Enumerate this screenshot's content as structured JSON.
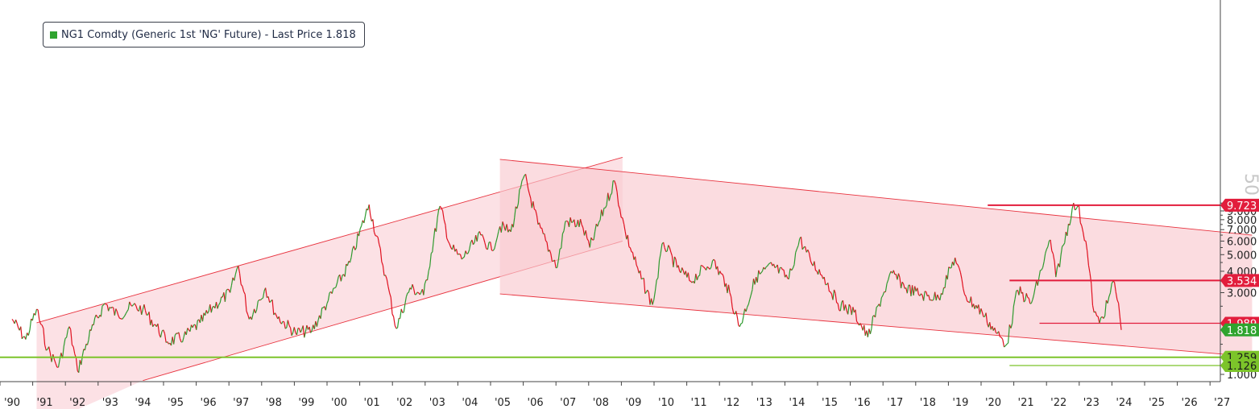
{
  "colors": {
    "up": "#2e9a2e",
    "down": "#e0101f",
    "channel_fill": "#f9c9cf",
    "channel_line": "#e8333f",
    "level_red": "#e21d3c",
    "level_green": "#7cc42a",
    "axis": "#444444"
  },
  "legend": {
    "swatch_color": "#2fa42f",
    "text": "NG1 Comdty (Generic 1st 'NG' Future) - Last Price 1.818"
  },
  "watermark": "50",
  "chart_data": {
    "type": "line",
    "y_scale": "log",
    "ylim": [
      0.92,
      18.5
    ],
    "xlim": [
      "1990-01",
      "2027-12"
    ],
    "x_tick_labels": [
      "'90",
      "'91",
      "'92",
      "'93",
      "'94",
      "'95",
      "'96",
      "'97",
      "'98",
      "'99",
      "'00",
      "'01",
      "'02",
      "'03",
      "'04",
      "'05",
      "'06",
      "'07",
      "'08",
      "'09",
      "'10",
      "'11",
      "'12",
      "'13",
      "'14",
      "'15",
      "'16",
      "'17",
      "'18",
      "'19",
      "'20",
      "'21",
      "'22",
      "'23",
      "'24",
      "'25",
      "'26",
      "'27"
    ],
    "y_tick_labels": [
      "9.000",
      "8.000",
      "7.000",
      "6.000",
      "5.000",
      "4.000",
      "3.000",
      "1.000"
    ],
    "y_tick_values": [
      9,
      8,
      7,
      6,
      5,
      4,
      3,
      1
    ],
    "series": [
      {
        "points": [
          [
            "1990-01",
            2.1
          ],
          [
            "1990-06",
            1.6
          ],
          [
            "1990-10",
            2.4
          ],
          [
            "1991-02",
            1.4
          ],
          [
            "1991-06",
            1.1
          ],
          [
            "1991-10",
            1.9
          ],
          [
            "1992-01",
            1.05
          ],
          [
            "1992-06",
            1.8
          ],
          [
            "1992-11",
            2.6
          ],
          [
            "1993-04",
            2.2
          ],
          [
            "1993-09",
            2.5
          ],
          [
            "1994-01",
            2.4
          ],
          [
            "1994-06",
            1.9
          ],
          [
            "1994-10",
            1.55
          ],
          [
            "1995-04",
            1.65
          ],
          [
            "1995-10",
            2.0
          ],
          [
            "1996-03",
            2.5
          ],
          [
            "1996-09",
            3.0
          ],
          [
            "1996-12",
            4.3
          ],
          [
            "1997-04",
            2.1
          ],
          [
            "1997-10",
            3.2
          ],
          [
            "1998-02",
            2.2
          ],
          [
            "1998-09",
            1.75
          ],
          [
            "1999-03",
            1.8
          ],
          [
            "1999-09",
            2.7
          ],
          [
            "2000-05",
            4.5
          ],
          [
            "2000-12",
            9.8
          ],
          [
            "2001-06",
            3.8
          ],
          [
            "2001-10",
            1.85
          ],
          [
            "2002-03",
            3.2
          ],
          [
            "2002-08",
            2.9
          ],
          [
            "2003-02",
            9.6
          ],
          [
            "2003-06",
            5.5
          ],
          [
            "2003-10",
            4.7
          ],
          [
            "2004-05",
            6.5
          ],
          [
            "2004-09",
            5.3
          ],
          [
            "2004-12",
            7.3
          ],
          [
            "2005-04",
            6.8
          ],
          [
            "2005-09",
            14.5
          ],
          [
            "2006-02",
            7.5
          ],
          [
            "2006-09",
            4.2
          ],
          [
            "2006-12",
            7.8
          ],
          [
            "2007-06",
            7.5
          ],
          [
            "2007-09",
            5.5
          ],
          [
            "2008-06",
            13.5
          ],
          [
            "2008-10",
            6.8
          ],
          [
            "2009-03",
            3.9
          ],
          [
            "2009-08",
            2.55
          ],
          [
            "2009-12",
            5.9
          ],
          [
            "2010-05",
            4.2
          ],
          [
            "2010-10",
            3.5
          ],
          [
            "2011-06",
            4.6
          ],
          [
            "2011-11",
            3.4
          ],
          [
            "2012-04",
            1.9
          ],
          [
            "2012-10",
            3.7
          ],
          [
            "2013-04",
            4.3
          ],
          [
            "2013-10",
            3.6
          ],
          [
            "2014-02",
            6.2
          ],
          [
            "2014-06",
            4.6
          ],
          [
            "2014-11",
            3.7
          ],
          [
            "2015-04",
            2.6
          ],
          [
            "2015-10",
            2.3
          ],
          [
            "2016-03",
            1.65
          ],
          [
            "2016-08",
            2.8
          ],
          [
            "2016-12",
            3.9
          ],
          [
            "2017-05",
            3.2
          ],
          [
            "2017-11",
            2.9
          ],
          [
            "2018-05",
            2.8
          ],
          [
            "2018-11",
            4.8
          ],
          [
            "2019-03",
            2.85
          ],
          [
            "2019-09",
            2.3
          ],
          [
            "2020-02",
            1.75
          ],
          [
            "2020-06",
            1.5
          ],
          [
            "2020-10",
            3.1
          ],
          [
            "2021-03",
            2.6
          ],
          [
            "2021-10",
            6.1
          ],
          [
            "2021-12",
            3.7
          ],
          [
            "2022-06",
            9.3
          ],
          [
            "2022-08",
            9.6
          ],
          [
            "2022-11",
            6.0
          ],
          [
            "2023-02",
            2.3
          ],
          [
            "2023-04",
            1.99
          ],
          [
            "2023-07",
            2.6
          ],
          [
            "2023-09",
            3.5
          ],
          [
            "2023-11",
            2.6
          ],
          [
            "2023-12",
            1.818
          ]
        ]
      }
    ],
    "channels": [
      {
        "upper": [
          [
            "1990-10",
            2.0
          ],
          [
            "2008-09",
            18.5
          ]
        ],
        "lower": [
          [
            "1994-01",
            0.92
          ],
          [
            "2008-09",
            6.0
          ]
        ]
      },
      {
        "upper": [
          [
            "2004-12",
            18.0
          ],
          [
            "2027-12",
            6.5
          ]
        ],
        "lower": [
          [
            "2004-12",
            2.95
          ],
          [
            "2027-12",
            1.27
          ]
        ]
      }
    ],
    "levels": [
      {
        "value": 9.723,
        "label": "9.723",
        "color": "red",
        "from": "2019-11"
      },
      {
        "value": 3.534,
        "label": "3.534",
        "color": "red",
        "from": "2020-07"
      },
      {
        "value": 1.989,
        "label": "1.989",
        "color": "red",
        "from": "2021-06"
      },
      {
        "value": 1.818,
        "label": "1.818",
        "color": "green_last",
        "from": null
      },
      {
        "value": 1.259,
        "label": "1.259",
        "color": "green",
        "from": "1989-01"
      },
      {
        "value": 1.126,
        "label": "1.126",
        "color": "green",
        "from": "2020-07"
      }
    ]
  }
}
